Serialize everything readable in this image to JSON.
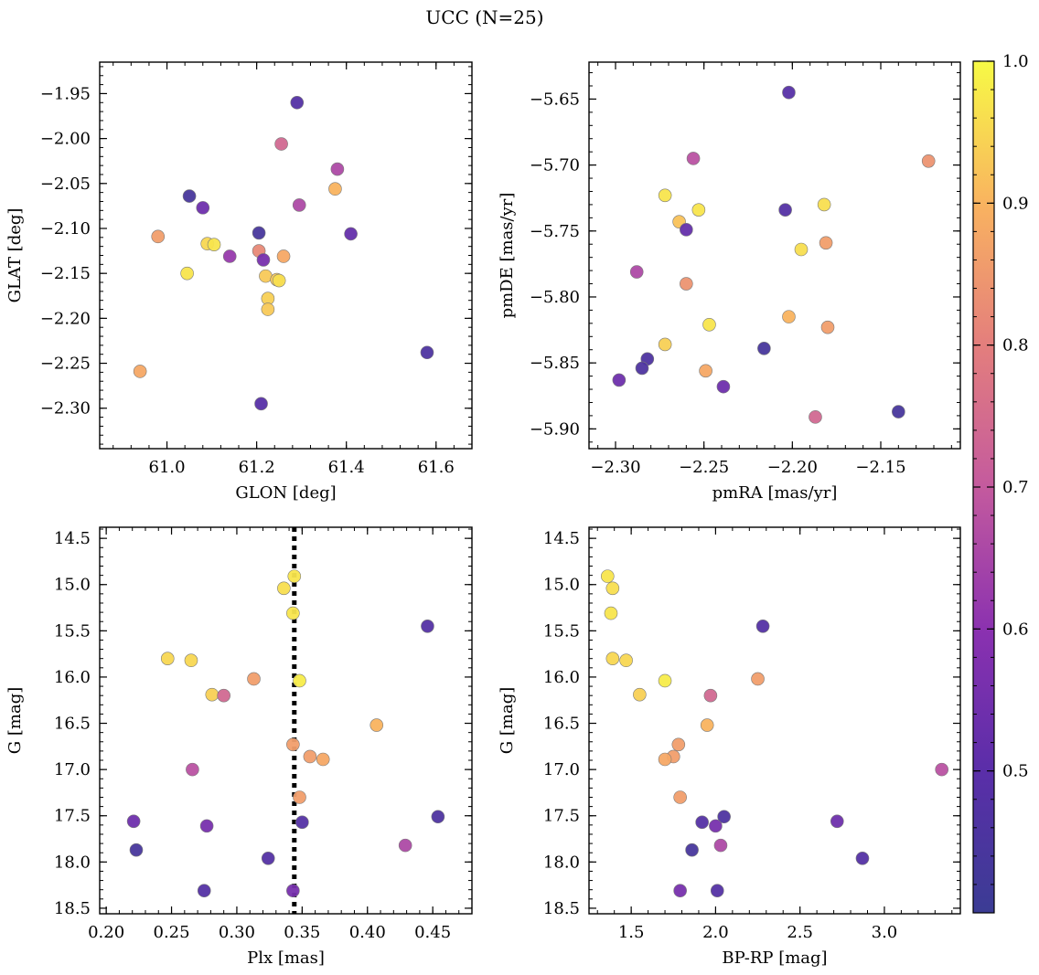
{
  "figure": {
    "title": "UCC (N=25)"
  },
  "colorbar": {
    "colormap": "plasma",
    "range": [
      0.4,
      1.0
    ],
    "ticks": [
      0.5,
      0.6,
      0.7,
      0.8,
      0.9,
      1.0
    ],
    "tick_labels": [
      "0.5",
      "0.6",
      "0.7",
      "0.8",
      "0.9",
      "1.0"
    ]
  },
  "chart_data": [
    {
      "type": "scatter",
      "xlabel": "GLON [deg]",
      "ylabel": "GLAT [deg]",
      "xlim": [
        60.85,
        61.68
      ],
      "ylim": [
        -2.345,
        -1.915
      ],
      "xticks": [
        61.0,
        61.2,
        61.4,
        61.6
      ],
      "xtick_labels": [
        "61.0",
        "61.2",
        "61.4",
        "61.6"
      ],
      "yticks": [
        -1.95,
        -2.0,
        -2.05,
        -2.1,
        -2.15,
        -2.2,
        -2.25,
        -2.3
      ],
      "ytick_labels": [
        "−1.95",
        "−2.00",
        "−2.05",
        "−2.10",
        "−2.15",
        "−2.20",
        "−2.25",
        "−2.30"
      ],
      "y_inverted": false,
      "points": [
        {
          "x": 61.29,
          "y": -1.96,
          "c": 0.48
        },
        {
          "x": 61.255,
          "y": -2.006,
          "c": 0.74
        },
        {
          "x": 61.38,
          "y": -2.034,
          "c": 0.66
        },
        {
          "x": 61.375,
          "y": -2.056,
          "c": 0.9
        },
        {
          "x": 61.05,
          "y": -2.064,
          "c": 0.44
        },
        {
          "x": 61.08,
          "y": -2.077,
          "c": 0.54
        },
        {
          "x": 61.295,
          "y": -2.074,
          "c": 0.66
        },
        {
          "x": 61.205,
          "y": -2.105,
          "c": 0.44
        },
        {
          "x": 61.41,
          "y": -2.106,
          "c": 0.52
        },
        {
          "x": 60.98,
          "y": -2.109,
          "c": 0.86
        },
        {
          "x": 61.09,
          "y": -2.117,
          "c": 0.95
        },
        {
          "x": 61.105,
          "y": -2.118,
          "c": 0.97
        },
        {
          "x": 61.205,
          "y": -2.125,
          "c": 0.82
        },
        {
          "x": 61.14,
          "y": -2.131,
          "c": 0.62
        },
        {
          "x": 61.26,
          "y": -2.131,
          "c": 0.88
        },
        {
          "x": 61.215,
          "y": -2.135,
          "c": 0.56
        },
        {
          "x": 61.045,
          "y": -2.15,
          "c": 0.97
        },
        {
          "x": 61.22,
          "y": -2.153,
          "c": 0.93
        },
        {
          "x": 61.245,
          "y": -2.157,
          "c": 0.93
        },
        {
          "x": 61.25,
          "y": -2.158,
          "c": 0.96
        },
        {
          "x": 61.225,
          "y": -2.178,
          "c": 0.94
        },
        {
          "x": 61.225,
          "y": -2.19,
          "c": 0.93
        },
        {
          "x": 61.58,
          "y": -2.238,
          "c": 0.46
        },
        {
          "x": 60.94,
          "y": -2.259,
          "c": 0.88
        },
        {
          "x": 61.21,
          "y": -2.295,
          "c": 0.49
        }
      ]
    },
    {
      "type": "scatter",
      "xlabel": "pmRA [mas/yr]",
      "ylabel": "pmDE [mas/yr]",
      "xlim": [
        -2.315,
        -2.105
      ],
      "ylim": [
        -5.915,
        -5.622
      ],
      "xticks": [
        -2.3,
        -2.25,
        -2.2,
        -2.15
      ],
      "xtick_labels": [
        "−2.30",
        "−2.25",
        "−2.20",
        "−2.15"
      ],
      "yticks": [
        -5.65,
        -5.7,
        -5.75,
        -5.8,
        -5.85,
        -5.9
      ],
      "ytick_labels": [
        "−5.65",
        "−5.70",
        "−5.75",
        "−5.80",
        "−5.85",
        "−5.90"
      ],
      "y_inverted": false,
      "points": [
        {
          "x": -2.202,
          "y": -5.645,
          "c": 0.49
        },
        {
          "x": -2.256,
          "y": -5.695,
          "c": 0.68
        },
        {
          "x": -2.123,
          "y": -5.697,
          "c": 0.84
        },
        {
          "x": -2.272,
          "y": -5.723,
          "c": 0.97
        },
        {
          "x": -2.182,
          "y": -5.73,
          "c": 0.96
        },
        {
          "x": -2.253,
          "y": -5.734,
          "c": 0.97
        },
        {
          "x": -2.204,
          "y": -5.734,
          "c": 0.48
        },
        {
          "x": -2.264,
          "y": -5.743,
          "c": 0.92
        },
        {
          "x": -2.26,
          "y": -5.749,
          "c": 0.52
        },
        {
          "x": -2.181,
          "y": -5.759,
          "c": 0.86
        },
        {
          "x": -2.195,
          "y": -5.764,
          "c": 0.96
        },
        {
          "x": -2.288,
          "y": -5.781,
          "c": 0.66
        },
        {
          "x": -2.26,
          "y": -5.79,
          "c": 0.84
        },
        {
          "x": -2.202,
          "y": -5.815,
          "c": 0.9
        },
        {
          "x": -2.247,
          "y": -5.821,
          "c": 0.97
        },
        {
          "x": -2.18,
          "y": -5.823,
          "c": 0.86
        },
        {
          "x": -2.272,
          "y": -5.836,
          "c": 0.94
        },
        {
          "x": -2.216,
          "y": -5.839,
          "c": 0.44
        },
        {
          "x": -2.282,
          "y": -5.847,
          "c": 0.46
        },
        {
          "x": -2.285,
          "y": -5.854,
          "c": 0.46
        },
        {
          "x": -2.249,
          "y": -5.856,
          "c": 0.88
        },
        {
          "x": -2.298,
          "y": -5.863,
          "c": 0.54
        },
        {
          "x": -2.239,
          "y": -5.868,
          "c": 0.54
        },
        {
          "x": -2.14,
          "y": -5.887,
          "c": 0.44
        },
        {
          "x": -2.187,
          "y": -5.891,
          "c": 0.74
        }
      ]
    },
    {
      "type": "scatter",
      "xlabel": "Plx [mas]",
      "ylabel": "G [mag]",
      "xlim": [
        0.195,
        0.48
      ],
      "ylim": [
        18.56,
        14.38
      ],
      "xticks": [
        0.2,
        0.25,
        0.3,
        0.35,
        0.4,
        0.45
      ],
      "xtick_labels": [
        "0.20",
        "0.25",
        "0.30",
        "0.35",
        "0.40",
        "0.45"
      ],
      "yticks": [
        14.5,
        15.0,
        15.5,
        16.0,
        16.5,
        17.0,
        17.5,
        18.0,
        18.5
      ],
      "ytick_labels": [
        "14.5",
        "15.0",
        "15.5",
        "16.0",
        "16.5",
        "17.0",
        "17.5",
        "18.0",
        "18.5"
      ],
      "y_inverted": true,
      "vline": {
        "x": 0.344,
        "style": "dotted"
      },
      "points": [
        {
          "x": 0.344,
          "y": 14.91,
          "c": 0.97
        },
        {
          "x": 0.336,
          "y": 15.04,
          "c": 0.96
        },
        {
          "x": 0.343,
          "y": 15.31,
          "c": 0.97
        },
        {
          "x": 0.446,
          "y": 15.45,
          "c": 0.48
        },
        {
          "x": 0.247,
          "y": 15.8,
          "c": 0.95
        },
        {
          "x": 0.265,
          "y": 15.82,
          "c": 0.95
        },
        {
          "x": 0.313,
          "y": 16.02,
          "c": 0.86
        },
        {
          "x": 0.348,
          "y": 16.04,
          "c": 0.98
        },
        {
          "x": 0.281,
          "y": 16.19,
          "c": 0.94
        },
        {
          "x": 0.29,
          "y": 16.2,
          "c": 0.74
        },
        {
          "x": 0.407,
          "y": 16.52,
          "c": 0.9
        },
        {
          "x": 0.343,
          "y": 16.73,
          "c": 0.86
        },
        {
          "x": 0.356,
          "y": 16.86,
          "c": 0.86
        },
        {
          "x": 0.366,
          "y": 16.89,
          "c": 0.88
        },
        {
          "x": 0.266,
          "y": 17.0,
          "c": 0.68
        },
        {
          "x": 0.348,
          "y": 17.3,
          "c": 0.86
        },
        {
          "x": 0.454,
          "y": 17.51,
          "c": 0.46
        },
        {
          "x": 0.221,
          "y": 17.56,
          "c": 0.54
        },
        {
          "x": 0.35,
          "y": 17.57,
          "c": 0.48
        },
        {
          "x": 0.277,
          "y": 17.61,
          "c": 0.56
        },
        {
          "x": 0.429,
          "y": 17.82,
          "c": 0.66
        },
        {
          "x": 0.223,
          "y": 17.87,
          "c": 0.44
        },
        {
          "x": 0.324,
          "y": 17.96,
          "c": 0.48
        },
        {
          "x": 0.275,
          "y": 18.31,
          "c": 0.48
        },
        {
          "x": 0.343,
          "y": 18.31,
          "c": 0.56
        }
      ]
    },
    {
      "type": "scatter",
      "xlabel": "BP-RP [mag]",
      "ylabel": "G [mag]",
      "xlim": [
        1.25,
        3.45
      ],
      "ylim": [
        18.56,
        14.38
      ],
      "xticks": [
        1.5,
        2.0,
        2.5,
        3.0
      ],
      "xtick_labels": [
        "1.5",
        "2.0",
        "2.5",
        "3.0"
      ],
      "yticks": [
        14.5,
        15.0,
        15.5,
        16.0,
        16.5,
        17.0,
        17.5,
        18.0,
        18.5
      ],
      "ytick_labels": [
        "14.5",
        "15.0",
        "15.5",
        "16.0",
        "16.5",
        "17.0",
        "17.5",
        "18.0",
        "18.5"
      ],
      "y_inverted": true,
      "points": [
        {
          "x": 1.36,
          "y": 14.91,
          "c": 0.97
        },
        {
          "x": 1.39,
          "y": 15.04,
          "c": 0.96
        },
        {
          "x": 1.38,
          "y": 15.31,
          "c": 0.97
        },
        {
          "x": 2.28,
          "y": 15.45,
          "c": 0.48
        },
        {
          "x": 1.39,
          "y": 15.8,
          "c": 0.95
        },
        {
          "x": 1.47,
          "y": 15.82,
          "c": 0.95
        },
        {
          "x": 2.25,
          "y": 16.02,
          "c": 0.86
        },
        {
          "x": 1.7,
          "y": 16.04,
          "c": 0.98
        },
        {
          "x": 1.55,
          "y": 16.19,
          "c": 0.94
        },
        {
          "x": 1.97,
          "y": 16.2,
          "c": 0.74
        },
        {
          "x": 1.95,
          "y": 16.52,
          "c": 0.9
        },
        {
          "x": 1.78,
          "y": 16.73,
          "c": 0.86
        },
        {
          "x": 1.75,
          "y": 16.86,
          "c": 0.86
        },
        {
          "x": 1.7,
          "y": 16.89,
          "c": 0.88
        },
        {
          "x": 3.34,
          "y": 17.0,
          "c": 0.68
        },
        {
          "x": 1.79,
          "y": 17.3,
          "c": 0.86
        },
        {
          "x": 2.05,
          "y": 17.51,
          "c": 0.46
        },
        {
          "x": 2.72,
          "y": 17.56,
          "c": 0.54
        },
        {
          "x": 1.92,
          "y": 17.57,
          "c": 0.48
        },
        {
          "x": 2.0,
          "y": 17.61,
          "c": 0.56
        },
        {
          "x": 2.03,
          "y": 17.82,
          "c": 0.66
        },
        {
          "x": 1.86,
          "y": 17.87,
          "c": 0.44
        },
        {
          "x": 2.87,
          "y": 17.96,
          "c": 0.48
        },
        {
          "x": 2.01,
          "y": 18.31,
          "c": 0.48
        },
        {
          "x": 1.79,
          "y": 18.31,
          "c": 0.56
        }
      ]
    }
  ]
}
